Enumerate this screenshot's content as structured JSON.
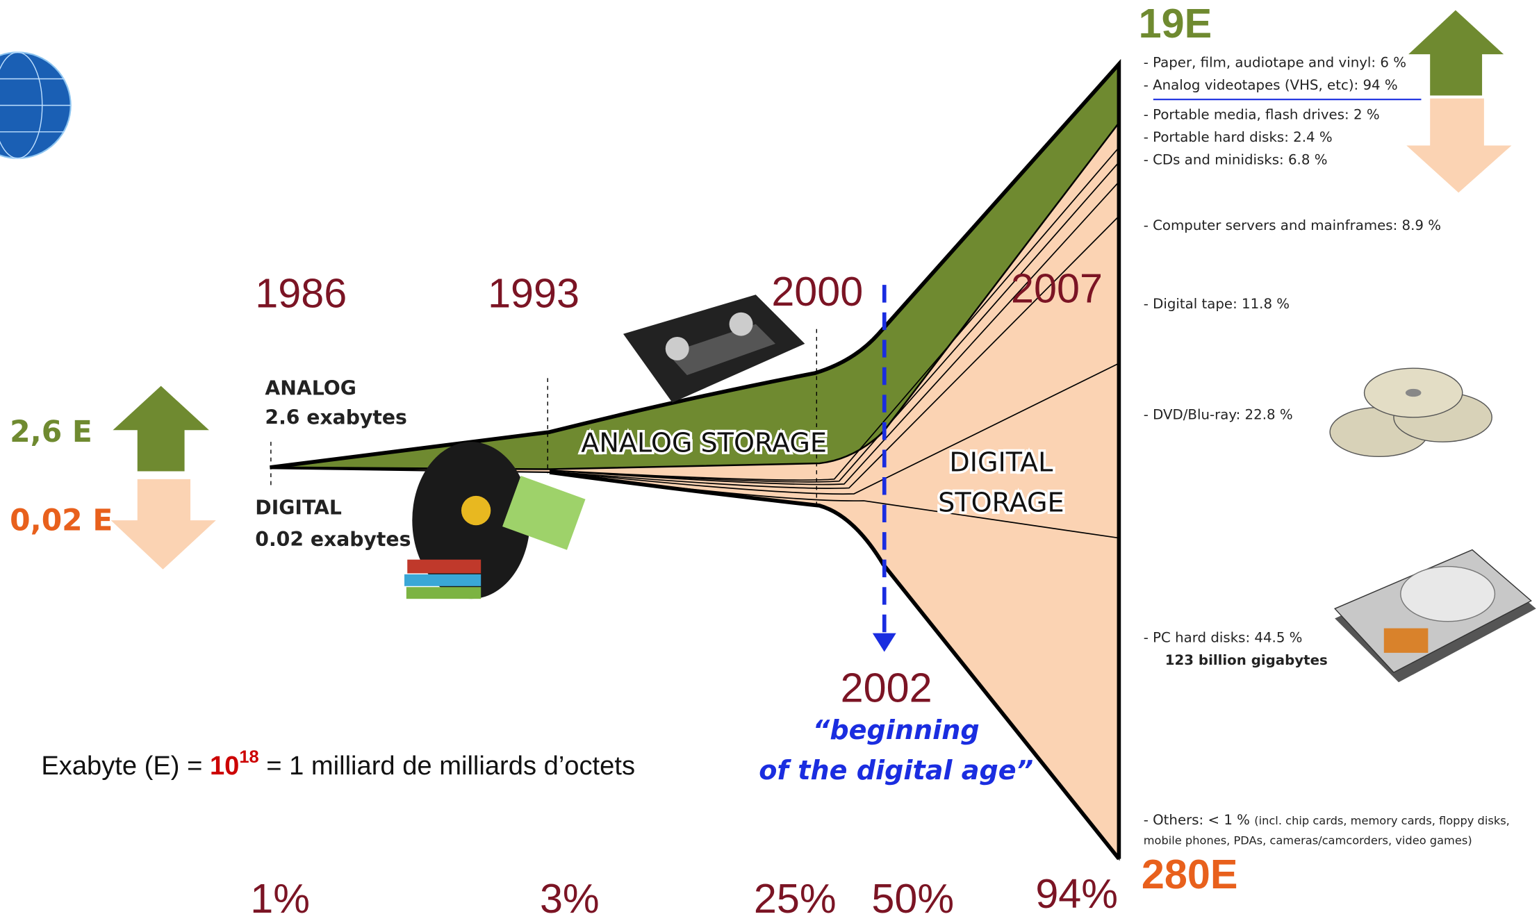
{
  "totals": {
    "top": "19E",
    "bottom": "280E",
    "left_analog": "2,6 E",
    "left_digital": "0,02 E"
  },
  "years": [
    "1986",
    "1993",
    "2000",
    "2007"
  ],
  "percentages": [
    "1%",
    "3%",
    "25%",
    "50%",
    "94%"
  ],
  "start_labels": {
    "analog": "ANALOG",
    "analog_amount": "2.6 exabytes",
    "digital": "DIGITAL",
    "digital_amount": "0.02 exabytes"
  },
  "areas": {
    "analog": "ANALOG STORAGE",
    "digital_line1": "DIGITAL",
    "digital_line2": "STORAGE"
  },
  "milestone": {
    "year": "2002",
    "line1": "“beginning",
    "line2": "of the digital age”"
  },
  "definition": {
    "lhs": "Exabyte (E) = ",
    "base": "10",
    "exponent": "18",
    "rhs": " = 1 milliard de milliards d’octets"
  },
  "breakdown": [
    "- Paper, film, audiotape and vinyl: 6 %",
    "- Analog videotapes (VHS, etc): 94 %",
    "- Portable media, flash drives: 2 %",
    "- Portable hard disks: 2.4 %",
    "- CDs and minidisks: 6.8 %",
    "- Computer  servers and mainframes: 8.9 %",
    "- Digital tape: 11.8 %",
    "- DVD/Blu-ray: 22.8 %",
    "- PC hard disks: 44.5 %",
    "123 billion  gigabytes",
    "- Others: < 1 % ",
    "(incl. chip cards, memory cards, floppy disks,",
    "mobile phones, PDAs, cameras/camcorders, video games)"
  ]
}
